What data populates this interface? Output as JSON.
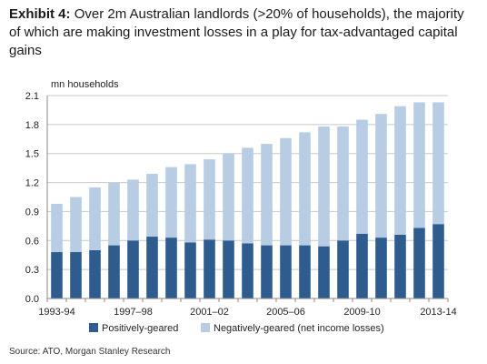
{
  "header": {
    "exhibit_label": "Exhibit 4:",
    "title": "Over 2m Australian landlords (>20% of households), the majority of which are making investment losses in a play for tax-advantaged capital gains"
  },
  "source": "Source: ATO, Morgan Stanley Research",
  "colors": {
    "positive": "#2e5c8f",
    "negative": "#b8cce4",
    "grid": "#c8c8c8",
    "axis": "#888888"
  },
  "chart_data": {
    "type": "bar",
    "stacked": true,
    "title": "",
    "ylabel": "mn households",
    "xlabel": "",
    "ylim": [
      0,
      2.1
    ],
    "yticks": [
      "0.0",
      "0.3",
      "0.6",
      "0.9",
      "1.2",
      "1.5",
      "1.8",
      "2.1"
    ],
    "ytick_values": [
      0,
      0.3,
      0.6,
      0.9,
      1.2,
      1.5,
      1.8,
      2.1
    ],
    "grid": true,
    "legend_position": "bottom",
    "categories": [
      "1993-94",
      "1994-95",
      "1995-96",
      "1996-97",
      "1997-98",
      "1998-99",
      "1999-00",
      "2000-01",
      "2001-02",
      "2002-03",
      "2003-04",
      "2004-05",
      "2005-06",
      "2006-07",
      "2007-08",
      "2008-09",
      "2009-10",
      "2010-11",
      "2011-12",
      "2012-13",
      "2013-14"
    ],
    "x_tick_labels": [
      {
        "index": 0,
        "label": "1993-94"
      },
      {
        "index": 4,
        "label": "1997–98"
      },
      {
        "index": 8,
        "label": "2001–02"
      },
      {
        "index": 12,
        "label": "2005–06"
      },
      {
        "index": 16,
        "label": "2009-10"
      },
      {
        "index": 20,
        "label": "2013-14"
      }
    ],
    "series": [
      {
        "name": "Positively-geared",
        "values": [
          0.48,
          0.48,
          0.5,
          0.55,
          0.6,
          0.64,
          0.63,
          0.58,
          0.61,
          0.6,
          0.57,
          0.55,
          0.55,
          0.55,
          0.54,
          0.6,
          0.67,
          0.63,
          0.66,
          0.73,
          0.77
        ]
      },
      {
        "name": "Negatively-geared (net income losses)",
        "values": [
          0.5,
          0.57,
          0.65,
          0.65,
          0.63,
          0.65,
          0.73,
          0.81,
          0.83,
          0.9,
          0.99,
          1.05,
          1.11,
          1.17,
          1.24,
          1.18,
          1.18,
          1.28,
          1.33,
          1.3,
          1.26
        ]
      }
    ]
  }
}
